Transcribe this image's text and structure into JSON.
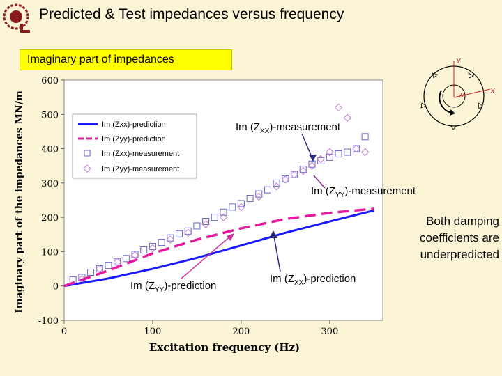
{
  "slide": {
    "title": "Predicted & Test impedances versus frequency",
    "subtitle": "Imaginary part of impedances"
  },
  "annotations": {
    "zxx_meas": {
      "base": "Im (Z",
      "sub": "XX",
      "tail": ")-measurement"
    },
    "zyy_meas": {
      "base": "Im (Z",
      "sub": "YY",
      "tail": ")-measurement"
    },
    "zyy_pred": {
      "base": "Im (Z",
      "sub": "YY",
      "tail": ")-prediction"
    },
    "zxx_pred": {
      "base": "Im (Z",
      "sub": "XX",
      "tail": ")-prediction"
    },
    "note_lines": [
      "Both damping",
      "coefficients are",
      "underpredicted"
    ]
  },
  "inset": {
    "y_label": "Y",
    "x_label": "X",
    "w_label": "W"
  },
  "colors": {
    "prediction_xx": "#1a1aff",
    "prediction_yy": "#e6199e",
    "measurement_xx": "#6666cc",
    "measurement_yy": "#c080d0",
    "plot_bg": "#ffffff",
    "subtitle_bg": "#ffff00"
  },
  "chart_data": {
    "type": "line",
    "xlabel": "Excitation frequency (Hz)",
    "ylabel": "Imaginary part of the impedances MN/m",
    "xlim": [
      0,
      360
    ],
    "ylim": [
      -100,
      600
    ],
    "xticks": [
      "0",
      "100",
      "200",
      "300"
    ],
    "yticks": [
      "-100",
      "0",
      "100",
      "200",
      "300",
      "400",
      "500",
      "600"
    ],
    "grid": false,
    "legend_position": "top-left",
    "series": [
      {
        "name": "Im (Zxx)-prediction",
        "style": "solid-line",
        "x": [
          0,
          50,
          100,
          150,
          200,
          250,
          300,
          350
        ],
        "y": [
          0,
          22,
          50,
          82,
          118,
          155,
          188,
          220
        ]
      },
      {
        "name": "Im (Zyy)-prediction",
        "style": "dashed-line",
        "x": [
          0,
          50,
          100,
          150,
          200,
          250,
          300,
          350
        ],
        "y": [
          0,
          45,
          95,
          135,
          168,
          195,
          213,
          225
        ]
      },
      {
        "name": "Im (Zxx)-measurement",
        "style": "square-markers",
        "x": [
          10,
          20,
          30,
          40,
          50,
          60,
          70,
          80,
          90,
          100,
          110,
          120,
          130,
          140,
          150,
          160,
          170,
          180,
          190,
          200,
          210,
          220,
          230,
          240,
          250,
          260,
          270,
          280,
          290,
          300,
          310,
          320,
          330,
          340
        ],
        "y": [
          18,
          25,
          40,
          50,
          60,
          70,
          80,
          92,
          105,
          115,
          127,
          140,
          152,
          160,
          175,
          188,
          200,
          215,
          230,
          240,
          255,
          268,
          280,
          300,
          312,
          325,
          340,
          355,
          365,
          375,
          385,
          390,
          400,
          435
        ]
      },
      {
        "name": "Im (Zyy)-measurement",
        "style": "diamond-markers",
        "x": [
          20,
          40,
          60,
          80,
          100,
          120,
          140,
          160,
          180,
          200,
          220,
          240,
          250,
          260,
          270,
          280,
          290,
          300,
          310,
          320,
          330,
          340
        ],
        "y": [
          20,
          50,
          70,
          90,
          110,
          135,
          155,
          180,
          200,
          230,
          260,
          290,
          310,
          325,
          335,
          350,
          370,
          390,
          520,
          490,
          400,
          390
        ]
      }
    ]
  }
}
